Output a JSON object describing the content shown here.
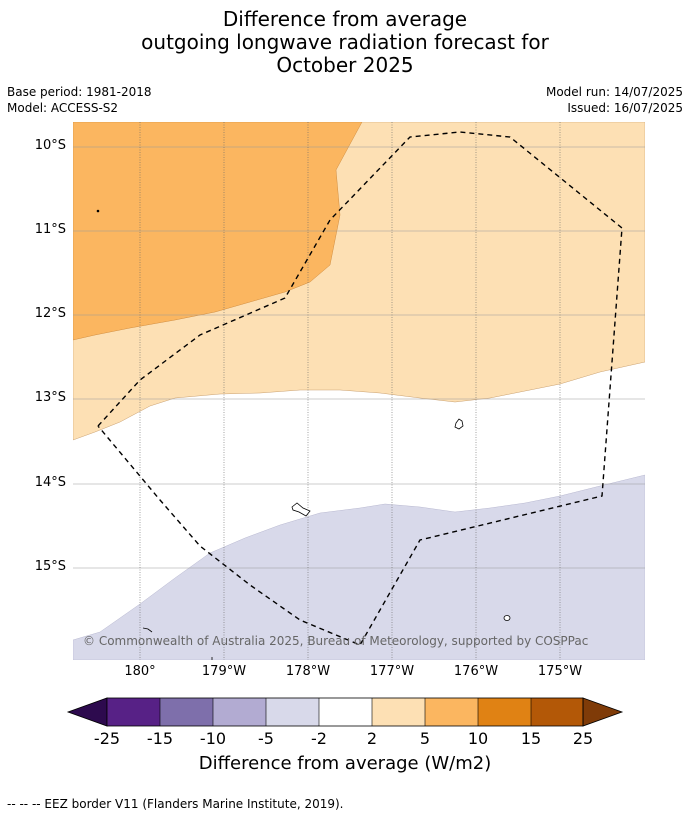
{
  "title": {
    "line1": "Difference from average",
    "line2": "outgoing longwave radiation forecast for",
    "line3": "October 2025"
  },
  "meta": {
    "base_period": "Base period: 1981-2018",
    "model": "Model: ACCESS-S2",
    "model_run": "Model run: 14/07/2025",
    "issued": "Issued: 16/07/2025"
  },
  "map": {
    "lat_labels": [
      "10°S",
      "11°S",
      "12°S",
      "13°S",
      "14°S",
      "15°S"
    ],
    "lon_labels": [
      "180°",
      "179°W",
      "178°W",
      "177°W",
      "176°W",
      "175°W"
    ],
    "credit": "© Commonwealth of Australia 2025, Bureau of Meteorology, supported by COSPPac",
    "colors": {
      "band_5_10": "#fbb660",
      "band_2_5": "#fde0b4",
      "band_neg2_neg5": "#d8d9ea"
    }
  },
  "colorbar": {
    "title": "Difference from average (W/m2)",
    "ticks": [
      "-25",
      "-15",
      "-10",
      "-5",
      "-2",
      "2",
      "5",
      "10",
      "15",
      "25"
    ],
    "colors": [
      "#572186",
      "#7e6fab",
      "#b2abd2",
      "#d8d9ea",
      "#ffffff",
      "#fde0b4",
      "#fbb660",
      "#e08214",
      "#b35807"
    ],
    "under_color": "#2d0a4e",
    "over_color": "#7f3b08"
  },
  "footer": {
    "legend_text": "--  --  -- EEZ border V11 (Flanders Marine Institute, 2019)."
  }
}
